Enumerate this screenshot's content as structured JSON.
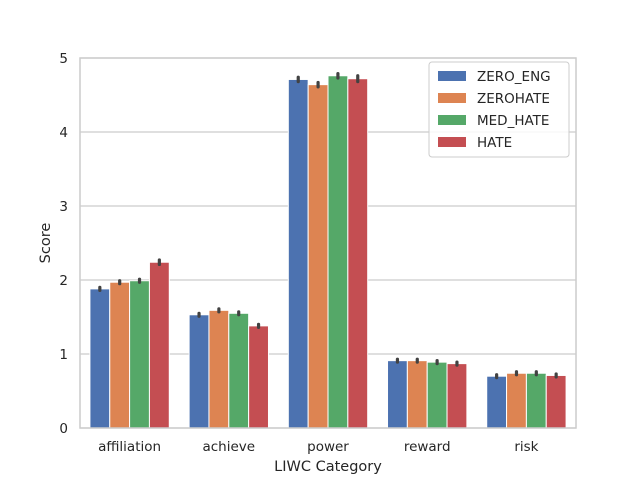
{
  "chart_data": {
    "type": "bar",
    "title": "",
    "xlabel": "LIWC Category",
    "ylabel": "Score",
    "ylim": [
      0,
      5
    ],
    "yticks": [
      "0",
      "1",
      "2",
      "3",
      "4",
      "5"
    ],
    "grid": "horizontal",
    "legend_position": "top-right",
    "categories": [
      "affiliation",
      "achieve",
      "power",
      "reward",
      "risk"
    ],
    "series": [
      {
        "name": "ZERO_ENG",
        "color": "#4c72b0",
        "values": [
          1.88,
          1.53,
          4.71,
          0.91,
          0.7
        ],
        "err": [
          0.02,
          0.02,
          0.03,
          0.02,
          0.02
        ]
      },
      {
        "name": "ZEROHATE",
        "color": "#dd8452",
        "values": [
          1.97,
          1.59,
          4.64,
          0.91,
          0.74
        ],
        "err": [
          0.02,
          0.02,
          0.03,
          0.02,
          0.02
        ]
      },
      {
        "name": "MED_HATE",
        "color": "#55a868",
        "values": [
          1.99,
          1.55,
          4.76,
          0.89,
          0.74
        ],
        "err": [
          0.02,
          0.02,
          0.03,
          0.02,
          0.02
        ]
      },
      {
        "name": "HATE",
        "color": "#c44e52",
        "values": [
          2.24,
          1.38,
          4.72,
          0.87,
          0.71
        ],
        "err": [
          0.03,
          0.02,
          0.04,
          0.02,
          0.02
        ]
      }
    ]
  }
}
